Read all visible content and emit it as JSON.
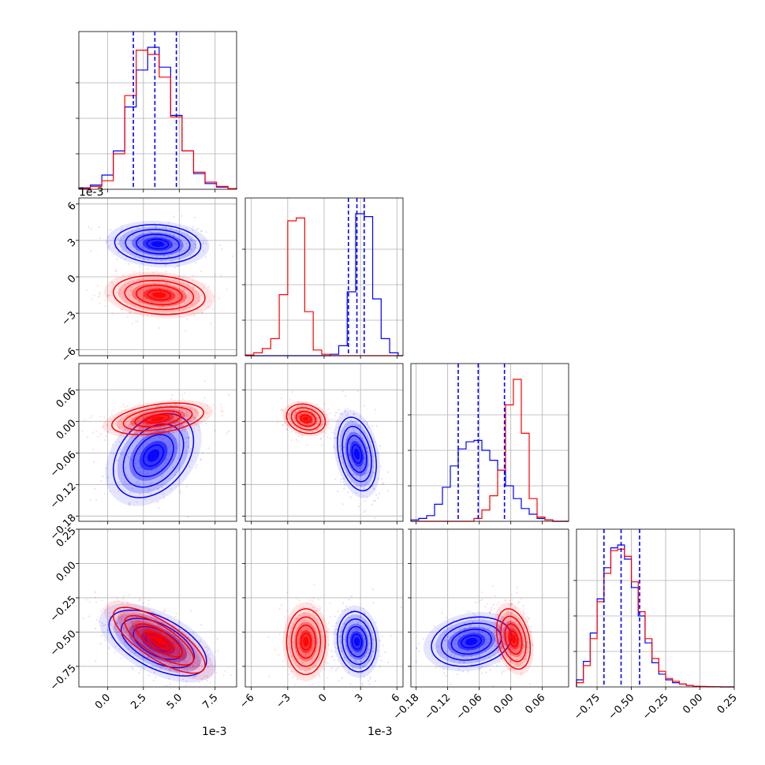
{
  "chart_data": {
    "type": "corner",
    "title": "",
    "grid": true,
    "series": [
      {
        "name": "",
        "color": "#0000ff"
      },
      {
        "name": "",
        "color": "#ff0000"
      }
    ],
    "parameters": [
      {
        "index": 0,
        "range": [
          -0.002,
          0.009
        ],
        "ticks": [
          0.0,
          0.0025,
          0.005,
          0.0075
        ],
        "tick_labels": [
          "0.0",
          "2.5",
          "5.0",
          "7.5"
        ],
        "offset_text": "1e-3",
        "marginal": {
          "quantiles": [
            0.0018,
            0.0033,
            0.0048
          ],
          "bin_edges": [
            -0.002,
            -0.0012,
            -0.0004,
            0.0004,
            0.0012,
            0.002,
            0.0028,
            0.0036,
            0.0044,
            0.0052,
            0.006,
            0.0068,
            0.0076,
            0.0084,
            0.009
          ],
          "blue": [
            0.01,
            0.03,
            0.1,
            0.27,
            0.58,
            0.84,
            1.0,
            0.86,
            0.52,
            0.27,
            0.11,
            0.04,
            0.015,
            0.005
          ],
          "red": [
            0.005,
            0.02,
            0.06,
            0.25,
            0.66,
            0.98,
            0.95,
            0.79,
            0.51,
            0.27,
            0.12,
            0.05,
            0.02,
            0.005
          ]
        }
      },
      {
        "index": 1,
        "range": [
          -0.0065,
          0.0065
        ],
        "ticks": [
          -0.006,
          -0.003,
          0.0,
          0.003,
          0.006
        ],
        "tick_labels": [
          "−6",
          "−3",
          "0",
          "3",
          "6"
        ],
        "offset_text": "1e-3",
        "marginal": {
          "quantiles": [
            0.002,
            0.0027,
            0.0033
          ],
          "bin_edges": [
            -0.0065,
            -0.0058,
            -0.0051,
            -0.0044,
            -0.0037,
            -0.003,
            -0.0023,
            -0.0016,
            -0.0009,
            -0.0002,
            0.0005,
            0.0012,
            0.0019,
            0.0026,
            0.0033,
            0.004,
            0.0047,
            0.0054,
            0.0061,
            0.0065
          ],
          "blue": [
            0,
            0,
            0,
            0,
            0,
            0,
            0,
            0,
            0,
            0,
            0.01,
            0.07,
            0.45,
            1.0,
            0.98,
            0.4,
            0.12,
            0.02,
            0
          ],
          "red": [
            0.005,
            0.02,
            0.05,
            0.12,
            0.43,
            0.95,
            0.97,
            0.31,
            0.04,
            0.01,
            0,
            0,
            0,
            0,
            0,
            0,
            0,
            0,
            0
          ]
        }
      },
      {
        "index": 2,
        "range": [
          -0.19,
          0.11
        ],
        "ticks": [
          -0.18,
          -0.12,
          -0.06,
          0.0,
          0.06
        ],
        "tick_labels": [
          "−0.18",
          "−0.12",
          "−0.06",
          "0.00",
          "0.06"
        ],
        "offset_text": "",
        "marginal": {
          "quantiles": [
            -0.1,
            -0.062,
            -0.012
          ],
          "bin_edges": [
            -0.19,
            -0.175,
            -0.16,
            -0.145,
            -0.13,
            -0.115,
            -0.1,
            -0.085,
            -0.07,
            -0.055,
            -0.04,
            -0.025,
            -0.01,
            0.005,
            0.02,
            0.035,
            0.05,
            0.065,
            0.08,
            0.095,
            0.11
          ],
          "blue": [
            0.01,
            0.02,
            0.04,
            0.12,
            0.24,
            0.39,
            0.51,
            0.56,
            0.57,
            0.5,
            0.43,
            0.36,
            0.25,
            0.16,
            0.09,
            0.05,
            0.02,
            0.01,
            0,
            0
          ],
          "red": [
            0,
            0,
            0,
            0,
            0,
            0,
            0,
            0,
            0.02,
            0.08,
            0.18,
            0.36,
            0.82,
            1.0,
            0.62,
            0.16,
            0.03,
            0.01,
            0,
            0
          ]
        }
      },
      {
        "index": 3,
        "range": [
          -0.9,
          0.25
        ],
        "ticks": [
          -0.75,
          -0.5,
          -0.25,
          0.0,
          0.25
        ],
        "tick_labels": [
          "−0.75",
          "−0.50",
          "−0.25",
          "0.00",
          "0.25"
        ],
        "offset_text": "",
        "marginal": {
          "quantiles": [
            -0.7,
            -0.575,
            -0.44
          ],
          "bin_edges": [
            -0.9,
            -0.85,
            -0.8,
            -0.75,
            -0.7,
            -0.65,
            -0.6,
            -0.55,
            -0.5,
            -0.45,
            -0.4,
            -0.35,
            -0.3,
            -0.25,
            -0.2,
            -0.15,
            -0.1,
            -0.05,
            0.0,
            0.05,
            0.1,
            0.15,
            0.2,
            0.25
          ],
          "blue": [
            0.05,
            0.18,
            0.38,
            0.62,
            0.84,
            0.98,
            1.0,
            0.9,
            0.7,
            0.5,
            0.31,
            0.17,
            0.09,
            0.05,
            0.03,
            0.02,
            0.01,
            0.005,
            0.003,
            0.002,
            0.001,
            0,
            0
          ],
          "red": [
            0.03,
            0.15,
            0.34,
            0.6,
            0.8,
            0.96,
            0.97,
            0.92,
            0.74,
            0.53,
            0.34,
            0.2,
            0.11,
            0.06,
            0.04,
            0.02,
            0.01,
            0.005,
            0.003,
            0.002,
            0.001,
            0,
            0
          ]
        }
      }
    ],
    "joint": [
      {
        "x": 0,
        "y": 1,
        "blue": {
          "center": [
            0.0035,
            0.0027
          ],
          "sigma": [
            0.0015,
            0.0008
          ],
          "rho": -0.1
        },
        "red": {
          "center": [
            0.0036,
            -0.0015
          ],
          "sigma": [
            0.0016,
            0.0008
          ],
          "rho": -0.15
        }
      },
      {
        "x": 0,
        "y": 2,
        "blue": {
          "center": [
            0.0032,
            -0.065
          ],
          "sigma": [
            0.0014,
            0.04
          ],
          "rho": 0.35
        },
        "red": {
          "center": [
            0.0035,
            0.005
          ],
          "sigma": [
            0.0016,
            0.015
          ],
          "rho": 0.4
        }
      },
      {
        "x": 0,
        "y": 3,
        "blue": {
          "center": [
            0.0035,
            -0.58
          ],
          "sigma": [
            0.0017,
            0.12
          ],
          "rho": -0.55
        },
        "red": {
          "center": [
            0.0036,
            -0.56
          ],
          "sigma": [
            0.0016,
            0.12
          ],
          "rho": -0.75
        }
      },
      {
        "x": 1,
        "y": 2,
        "blue": {
          "center": [
            0.0027,
            -0.062
          ],
          "sigma": [
            0.0008,
            0.035
          ],
          "rho": -0.3
        },
        "red": {
          "center": [
            -0.0015,
            0.005
          ],
          "sigma": [
            0.0008,
            0.014
          ],
          "rho": -0.2
        }
      },
      {
        "x": 1,
        "y": 3,
        "blue": {
          "center": [
            0.0027,
            -0.57
          ],
          "sigma": [
            0.0008,
            0.11
          ],
          "rho": -0.1
        },
        "red": {
          "center": [
            -0.0015,
            -0.57
          ],
          "sigma": [
            0.0008,
            0.12
          ],
          "rho": 0.0
        }
      },
      {
        "x": 2,
        "y": 3,
        "blue": {
          "center": [
            -0.075,
            -0.57
          ],
          "sigma": [
            0.038,
            0.09
          ],
          "rho": 0.2
        },
        "red": {
          "center": [
            0.005,
            -0.55
          ],
          "sigma": [
            0.016,
            0.11
          ],
          "rho": -0.3
        }
      }
    ]
  }
}
